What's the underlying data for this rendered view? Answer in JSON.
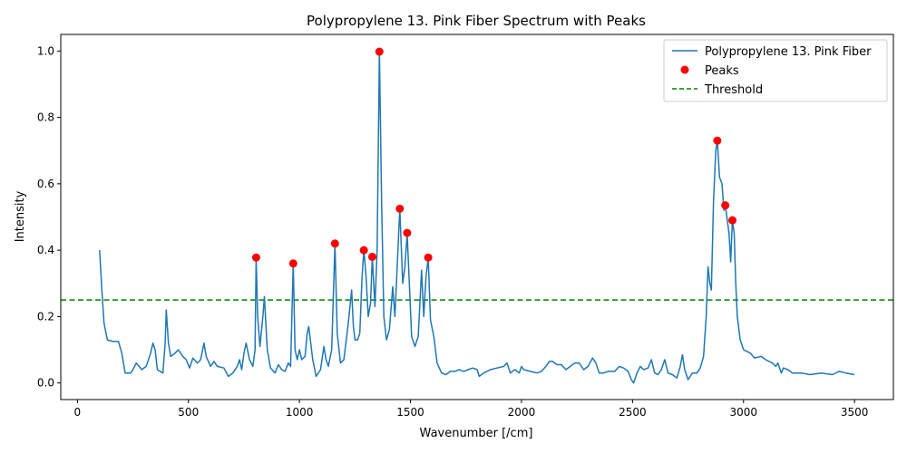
{
  "chart_data": {
    "type": "line",
    "title": "Polypropylene 13. Pink Fiber Spectrum with Peaks",
    "xlabel": "Wavenumber [/cm]",
    "ylabel": "Intensity",
    "xlim": [
      -75,
      3675
    ],
    "ylim": [
      -0.05,
      1.05
    ],
    "xticks": [
      0,
      500,
      1000,
      1500,
      2000,
      2500,
      3000,
      3500
    ],
    "yticks": [
      0.0,
      0.2,
      0.4,
      0.6,
      0.8,
      1.0
    ],
    "xtick_labels": [
      "0",
      "500",
      "1000",
      "1500",
      "2000",
      "2500",
      "3000",
      "3500"
    ],
    "ytick_labels": [
      "0.0",
      "0.2",
      "0.4",
      "0.6",
      "0.8",
      "1.0"
    ],
    "grid": false,
    "legend_position": "top-right",
    "legend": [
      {
        "label": "Polypropylene 13. Pink Fiber",
        "style": "line",
        "color": "#1f77b4"
      },
      {
        "label": "Peaks",
        "style": "marker",
        "color": "#ff0000"
      },
      {
        "label": "Threshold",
        "style": "dashed",
        "color": "#008000"
      }
    ],
    "series": [
      {
        "name": "Polypropylene 13. Pink Fiber",
        "color": "#1f77b4",
        "points": [
          [
            100,
            0.4
          ],
          [
            110,
            0.28
          ],
          [
            120,
            0.18
          ],
          [
            135,
            0.13
          ],
          [
            160,
            0.125
          ],
          [
            185,
            0.125
          ],
          [
            200,
            0.09
          ],
          [
            215,
            0.03
          ],
          [
            240,
            0.03
          ],
          [
            250,
            0.04
          ],
          [
            265,
            0.06
          ],
          [
            290,
            0.04
          ],
          [
            310,
            0.05
          ],
          [
            330,
            0.09
          ],
          [
            340,
            0.12
          ],
          [
            350,
            0.1
          ],
          [
            360,
            0.04
          ],
          [
            385,
            0.03
          ],
          [
            395,
            0.12
          ],
          [
            400,
            0.22
          ],
          [
            410,
            0.12
          ],
          [
            420,
            0.08
          ],
          [
            440,
            0.09
          ],
          [
            455,
            0.1
          ],
          [
            475,
            0.08
          ],
          [
            490,
            0.07
          ],
          [
            505,
            0.045
          ],
          [
            520,
            0.075
          ],
          [
            540,
            0.06
          ],
          [
            555,
            0.07
          ],
          [
            570,
            0.12
          ],
          [
            580,
            0.08
          ],
          [
            600,
            0.05
          ],
          [
            615,
            0.065
          ],
          [
            630,
            0.05
          ],
          [
            660,
            0.045
          ],
          [
            680,
            0.02
          ],
          [
            700,
            0.03
          ],
          [
            720,
            0.05
          ],
          [
            730,
            0.07
          ],
          [
            740,
            0.04
          ],
          [
            750,
            0.09
          ],
          [
            760,
            0.12
          ],
          [
            775,
            0.07
          ],
          [
            790,
            0.05
          ],
          [
            800,
            0.1
          ],
          [
            805,
            0.378
          ],
          [
            812,
            0.2
          ],
          [
            822,
            0.11
          ],
          [
            835,
            0.2
          ],
          [
            842,
            0.26
          ],
          [
            855,
            0.1
          ],
          [
            870,
            0.045
          ],
          [
            890,
            0.03
          ],
          [
            905,
            0.055
          ],
          [
            920,
            0.04
          ],
          [
            935,
            0.035
          ],
          [
            950,
            0.06
          ],
          [
            960,
            0.05
          ],
          [
            972,
            0.36
          ],
          [
            980,
            0.1
          ],
          [
            990,
            0.07
          ],
          [
            1000,
            0.1
          ],
          [
            1010,
            0.07
          ],
          [
            1025,
            0.08
          ],
          [
            1035,
            0.15
          ],
          [
            1042,
            0.17
          ],
          [
            1060,
            0.07
          ],
          [
            1075,
            0.02
          ],
          [
            1095,
            0.04
          ],
          [
            1110,
            0.11
          ],
          [
            1120,
            0.07
          ],
          [
            1130,
            0.05
          ],
          [
            1145,
            0.1
          ],
          [
            1160,
            0.42
          ],
          [
            1170,
            0.15
          ],
          [
            1185,
            0.06
          ],
          [
            1200,
            0.07
          ],
          [
            1220,
            0.18
          ],
          [
            1235,
            0.28
          ],
          [
            1243,
            0.17
          ],
          [
            1250,
            0.13
          ],
          [
            1262,
            0.13
          ],
          [
            1272,
            0.15
          ],
          [
            1282,
            0.32
          ],
          [
            1290,
            0.4
          ],
          [
            1300,
            0.32
          ],
          [
            1310,
            0.2
          ],
          [
            1320,
            0.24
          ],
          [
            1328,
            0.38
          ],
          [
            1340,
            0.23
          ],
          [
            1350,
            0.4
          ],
          [
            1360,
            0.998
          ],
          [
            1370,
            0.55
          ],
          [
            1380,
            0.2
          ],
          [
            1392,
            0.13
          ],
          [
            1405,
            0.16
          ],
          [
            1420,
            0.29
          ],
          [
            1430,
            0.2
          ],
          [
            1440,
            0.35
          ],
          [
            1452,
            0.525
          ],
          [
            1465,
            0.3
          ],
          [
            1475,
            0.35
          ],
          [
            1485,
            0.45
          ],
          [
            1495,
            0.3
          ],
          [
            1505,
            0.14
          ],
          [
            1520,
            0.11
          ],
          [
            1535,
            0.14
          ],
          [
            1550,
            0.34
          ],
          [
            1560,
            0.2
          ],
          [
            1570,
            0.32
          ],
          [
            1580,
            0.378
          ],
          [
            1590,
            0.19
          ],
          [
            1605,
            0.14
          ],
          [
            1620,
            0.06
          ],
          [
            1640,
            0.03
          ],
          [
            1660,
            0.025
          ],
          [
            1680,
            0.035
          ],
          [
            1700,
            0.035
          ],
          [
            1720,
            0.04
          ],
          [
            1740,
            0.035
          ],
          [
            1760,
            0.04
          ],
          [
            1780,
            0.045
          ],
          [
            1800,
            0.04
          ],
          [
            1810,
            0.02
          ],
          [
            1830,
            0.03
          ],
          [
            1860,
            0.04
          ],
          [
            1890,
            0.045
          ],
          [
            1920,
            0.05
          ],
          [
            1935,
            0.06
          ],
          [
            1950,
            0.03
          ],
          [
            1970,
            0.04
          ],
          [
            1990,
            0.03
          ],
          [
            2000,
            0.05
          ],
          [
            2010,
            0.04
          ],
          [
            2040,
            0.035
          ],
          [
            2070,
            0.03
          ],
          [
            2090,
            0.035
          ],
          [
            2110,
            0.05
          ],
          [
            2125,
            0.065
          ],
          [
            2140,
            0.065
          ],
          [
            2160,
            0.055
          ],
          [
            2180,
            0.055
          ],
          [
            2200,
            0.04
          ],
          [
            2220,
            0.05
          ],
          [
            2240,
            0.06
          ],
          [
            2260,
            0.06
          ],
          [
            2280,
            0.04
          ],
          [
            2300,
            0.05
          ],
          [
            2320,
            0.075
          ],
          [
            2335,
            0.06
          ],
          [
            2350,
            0.03
          ],
          [
            2370,
            0.03
          ],
          [
            2390,
            0.035
          ],
          [
            2420,
            0.035
          ],
          [
            2440,
            0.05
          ],
          [
            2460,
            0.045
          ],
          [
            2480,
            0.035
          ],
          [
            2495,
            0.01
          ],
          [
            2505,
            0.0
          ],
          [
            2520,
            0.03
          ],
          [
            2535,
            0.05
          ],
          [
            2550,
            0.04
          ],
          [
            2570,
            0.045
          ],
          [
            2585,
            0.07
          ],
          [
            2600,
            0.03
          ],
          [
            2615,
            0.025
          ],
          [
            2630,
            0.04
          ],
          [
            2645,
            0.07
          ],
          [
            2660,
            0.03
          ],
          [
            2680,
            0.025
          ],
          [
            2700,
            0.015
          ],
          [
            2715,
            0.05
          ],
          [
            2725,
            0.085
          ],
          [
            2735,
            0.04
          ],
          [
            2750,
            0.01
          ],
          [
            2770,
            0.03
          ],
          [
            2790,
            0.03
          ],
          [
            2805,
            0.045
          ],
          [
            2820,
            0.08
          ],
          [
            2832,
            0.2
          ],
          [
            2840,
            0.35
          ],
          [
            2848,
            0.3
          ],
          [
            2855,
            0.28
          ],
          [
            2865,
            0.55
          ],
          [
            2875,
            0.7
          ],
          [
            2882,
            0.73
          ],
          [
            2892,
            0.62
          ],
          [
            2903,
            0.6
          ],
          [
            2912,
            0.52
          ],
          [
            2918,
            0.535
          ],
          [
            2925,
            0.5
          ],
          [
            2935,
            0.45
          ],
          [
            2942,
            0.365
          ],
          [
            2950,
            0.49
          ],
          [
            2958,
            0.45
          ],
          [
            2965,
            0.3
          ],
          [
            2972,
            0.2
          ],
          [
            2985,
            0.13
          ],
          [
            3000,
            0.1
          ],
          [
            3030,
            0.09
          ],
          [
            3050,
            0.075
          ],
          [
            3080,
            0.08
          ],
          [
            3100,
            0.07
          ],
          [
            3130,
            0.06
          ],
          [
            3145,
            0.05
          ],
          [
            3155,
            0.06
          ],
          [
            3170,
            0.03
          ],
          [
            3180,
            0.045
          ],
          [
            3200,
            0.04
          ],
          [
            3220,
            0.03
          ],
          [
            3260,
            0.03
          ],
          [
            3300,
            0.025
          ],
          [
            3350,
            0.03
          ],
          [
            3400,
            0.025
          ],
          [
            3430,
            0.035
          ],
          [
            3460,
            0.03
          ],
          [
            3500,
            0.025
          ]
        ]
      }
    ],
    "peaks": [
      [
        805,
        0.378
      ],
      [
        972,
        0.36
      ],
      [
        1160,
        0.42
      ],
      [
        1290,
        0.4
      ],
      [
        1328,
        0.38
      ],
      [
        1360,
        0.998
      ],
      [
        1452,
        0.525
      ],
      [
        1485,
        0.452
      ],
      [
        1580,
        0.378
      ],
      [
        2882,
        0.73
      ],
      [
        2918,
        0.535
      ],
      [
        2950,
        0.49
      ]
    ],
    "threshold": 0.25
  }
}
